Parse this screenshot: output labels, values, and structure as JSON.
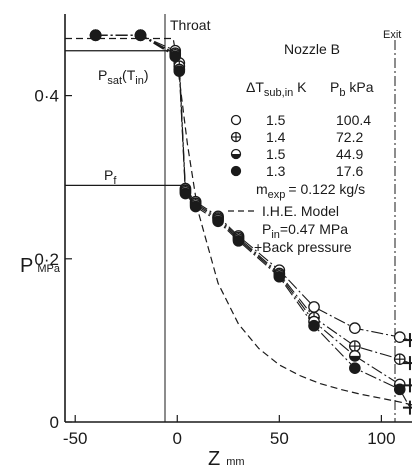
{
  "chart_data": {
    "type": "scatter",
    "xlabel": "Z",
    "xlabel_unit": "mm",
    "ylabel": "P",
    "ylabel_unit": "MPa",
    "xlim": [
      -55,
      115
    ],
    "ylim": [
      0,
      0.5
    ],
    "x_ticks": [
      "-50",
      "0",
      "50",
      "100"
    ],
    "y_ticks": [
      "0",
      "0·2",
      "0·4"
    ],
    "annotations": {
      "throat": "Throat",
      "exit": "Exit",
      "nozzle": "Nozzle  B",
      "psat": "P",
      "psat_sub": "sat",
      "psat_paren": "(T",
      "psat_paren_sub": "in",
      "psat_close": ")",
      "pf": "P",
      "pf_sub": "f",
      "dt_head": "ΔT",
      "dt_head_sub": "sub,in",
      "dt_head_unit": " K",
      "pb_head": "P",
      "pb_head_sub": "b",
      "pb_head_unit": " kPa",
      "mexp": "m",
      "mexp_sub": "exp",
      "mexp_value": "= 0.122 kg/s",
      "ihe": "I.H.E. Model",
      "pin": "P",
      "pin_sub": "in",
      "pin_value": "=0.47 MPa",
      "back": "+Back pressure"
    },
    "psat_level": 0.455,
    "pf_level": 0.29,
    "series": [
      {
        "dt": "1.5",
        "pb": "100.4",
        "marker": "open",
        "x": [
          -40,
          -18,
          -1,
          1,
          4,
          9,
          20,
          30,
          50,
          67,
          87,
          109
        ],
        "y": [
          0.474,
          0.474,
          0.455,
          0.44,
          0.286,
          0.27,
          0.252,
          0.228,
          0.186,
          0.141,
          0.115,
          0.104
        ]
      },
      {
        "dt": "1.4",
        "pb": "72.2",
        "marker": "cross",
        "x": [
          -40,
          -18,
          -1,
          1,
          4,
          9,
          20,
          30,
          50,
          67,
          87,
          109
        ],
        "y": [
          0.474,
          0.474,
          0.452,
          0.436,
          0.284,
          0.268,
          0.25,
          0.226,
          0.182,
          0.128,
          0.093,
          0.077
        ]
      },
      {
        "dt": "1.5",
        "pb": "44.9",
        "marker": "half",
        "x": [
          -40,
          -18,
          -1,
          1,
          4,
          9,
          20,
          30,
          50,
          67,
          87,
          109
        ],
        "y": [
          0.474,
          0.474,
          0.45,
          0.432,
          0.282,
          0.266,
          0.248,
          0.224,
          0.18,
          0.123,
          0.081,
          0.046
        ]
      },
      {
        "dt": "1.3",
        "pb": "17.6",
        "marker": "filled",
        "x": [
          -40,
          -18,
          -1,
          1,
          4,
          9,
          20,
          30,
          50,
          67,
          87,
          109
        ],
        "y": [
          0.474,
          0.474,
          0.448,
          0.43,
          0.28,
          0.264,
          0.246,
          0.222,
          0.178,
          0.118,
          0.066,
          0.04
        ]
      }
    ],
    "back_pressure": {
      "x": [
        114,
        114,
        114,
        114
      ],
      "y": [
        0.1004,
        0.0722,
        0.0449,
        0.0176
      ]
    },
    "ihe_model": {
      "x": [
        -55,
        -2,
        0,
        5,
        10,
        20,
        30,
        40,
        50,
        60,
        70,
        80,
        90,
        100,
        110,
        115
      ],
      "y": [
        0.47,
        0.47,
        0.44,
        0.34,
        0.26,
        0.17,
        0.12,
        0.09,
        0.07,
        0.057,
        0.047,
        0.04,
        0.034,
        0.029,
        0.024,
        0.021
      ]
    }
  }
}
